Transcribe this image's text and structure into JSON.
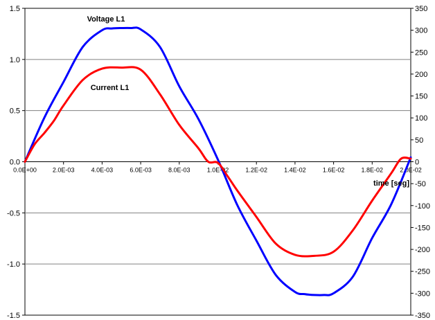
{
  "chart_data": {
    "type": "line",
    "xlabel": "time [seg]",
    "xlim": [
      0,
      0.02
    ],
    "ylim_left": [
      -1.5,
      1.5
    ],
    "ylim_right": [
      -350,
      350
    ],
    "grid": "horizontal",
    "x_ticks": [
      {
        "value": 0.0,
        "label": "0.0E+00"
      },
      {
        "value": 0.002,
        "label": "2.0E-03"
      },
      {
        "value": 0.004,
        "label": "4.0E-03"
      },
      {
        "value": 0.006,
        "label": "6.0E-03"
      },
      {
        "value": 0.008,
        "label": "8.0E-03"
      },
      {
        "value": 0.01,
        "label": "1.0E-02"
      },
      {
        "value": 0.012,
        "label": "1.2E-02"
      },
      {
        "value": 0.014,
        "label": "1.4E-02"
      },
      {
        "value": 0.016,
        "label": "1.6E-02"
      },
      {
        "value": 0.018,
        "label": "1.8E-02"
      },
      {
        "value": 0.02,
        "label": "2.0E-02"
      }
    ],
    "y_ticks_left": [
      "1.5",
      "1.0",
      "0.5",
      "0.0",
      "-0.5",
      "-1.0",
      "-1.5"
    ],
    "y_ticks_right": [
      "350",
      "300",
      "250",
      "200",
      "150",
      "100",
      "50",
      "0",
      "-50",
      "-100",
      "-150",
      "-200",
      "-250",
      "-300",
      "-350"
    ],
    "series": [
      {
        "name": "Voltage L1",
        "color": "#0000ff",
        "axis": "right",
        "x": [
          0,
          0.001,
          0.002,
          0.003,
          0.004,
          0.0045,
          0.005,
          0.0055,
          0.006,
          0.007,
          0.008,
          0.009,
          0.01,
          0.011,
          0.012,
          0.013,
          0.014,
          0.0145,
          0.015,
          0.0155,
          0.016,
          0.017,
          0.018,
          0.019,
          0.02
        ],
        "values": [
          0,
          100,
          182,
          262,
          300,
          304,
          305,
          305,
          302,
          262,
          172,
          97,
          5,
          -98,
          -180,
          -258,
          -297,
          -302,
          -304,
          -304,
          -300,
          -262,
          -174,
          -96,
          10
        ]
      },
      {
        "name": "Current L1",
        "color": "#ff0000",
        "axis": "left",
        "x": [
          0,
          0.0005,
          0.001,
          0.0015,
          0.002,
          0.003,
          0.004,
          0.005,
          0.006,
          0.007,
          0.008,
          0.009,
          0.0095,
          0.01,
          0.0105,
          0.011,
          0.012,
          0.013,
          0.014,
          0.015,
          0.016,
          0.017,
          0.018,
          0.019,
          0.0195,
          0.02
        ],
        "values": [
          0,
          0.17,
          0.28,
          0.4,
          0.55,
          0.8,
          0.91,
          0.92,
          0.9,
          0.66,
          0.36,
          0.13,
          0.0,
          -0.01,
          -0.14,
          -0.28,
          -0.54,
          -0.8,
          -0.91,
          -0.92,
          -0.88,
          -0.67,
          -0.38,
          -0.11,
          0.03,
          0.03
        ]
      }
    ],
    "annotations": [
      {
        "text": "Voltage L1",
        "x": 0.0042,
        "y": 1.37
      },
      {
        "text": "Current L1",
        "x": 0.0044,
        "y": 0.7
      }
    ]
  }
}
